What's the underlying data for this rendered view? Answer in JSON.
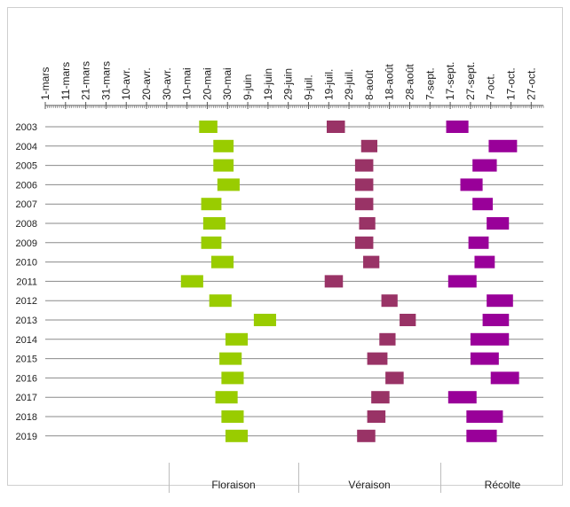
{
  "chart_data": {
    "type": "gantt",
    "x_tick_labels": [
      "1-mars",
      "11-mars",
      "21-mars",
      "31-mars",
      "10-avr.",
      "20-avr.",
      "30-avr.",
      "10-mai",
      "20-mai",
      "30-mai",
      "9-juin",
      "19-juin",
      "29-juin",
      "9-juil.",
      "19-juil.",
      "29-juil.",
      "8-août",
      "18-août",
      "28-août",
      "7-sept.",
      "17-sept.",
      "27-sept.",
      "7-oct.",
      "17-oct.",
      "27-oct."
    ],
    "x_range": [
      "1-mars",
      "2-nov."
    ],
    "years": [
      "2003",
      "2004",
      "2005",
      "2006",
      "2007",
      "2008",
      "2009",
      "2010",
      "2011",
      "2012",
      "2013",
      "2014",
      "2015",
      "2016",
      "2017",
      "2018",
      "2019"
    ],
    "phases": [
      {
        "name": "Floraison",
        "color": "#99cc00",
        "spans": [
          [
            "16-mai",
            "25-mai"
          ],
          [
            "23-mai",
            "2-juin"
          ],
          [
            "23-mai",
            "2-juin"
          ],
          [
            "25-mai",
            "5-juin"
          ],
          [
            "17-mai",
            "27-mai"
          ],
          [
            "18-mai",
            "29-mai"
          ],
          [
            "17-mai",
            "27-mai"
          ],
          [
            "22-mai",
            "2-juin"
          ],
          [
            "7-mai",
            "18-mai"
          ],
          [
            "21-mai",
            "1-juin"
          ],
          [
            "12-juin",
            "23-juin"
          ],
          [
            "29-mai",
            "9-juin"
          ],
          [
            "26-mai",
            "6-juin"
          ],
          [
            "27-mai",
            "7-juin"
          ],
          [
            "24-mai",
            "4-juin"
          ],
          [
            "27-mai",
            "7-juin"
          ],
          [
            "29-mai",
            "9-juin"
          ]
        ]
      },
      {
        "name": "Véraison",
        "color": "#993366",
        "spans": [
          [
            "18-juil.",
            "27-juil."
          ],
          [
            "4-août",
            "12-août"
          ],
          [
            "1-août",
            "10-août"
          ],
          [
            "1-août",
            "10-août"
          ],
          [
            "1-août",
            "10-août"
          ],
          [
            "3-août",
            "11-août"
          ],
          [
            "1-août",
            "10-août"
          ],
          [
            "5-août",
            "13-août"
          ],
          [
            "17-juil.",
            "26-juil."
          ],
          [
            "14-août",
            "22-août"
          ],
          [
            "23-août",
            "31-août"
          ],
          [
            "13-août",
            "21-août"
          ],
          [
            "7-août",
            "17-août"
          ],
          [
            "16-août",
            "25-août"
          ],
          [
            "9-août",
            "18-août"
          ],
          [
            "7-août",
            "16-août"
          ],
          [
            "2-août",
            "11-août"
          ]
        ]
      },
      {
        "name": "Récolte",
        "color": "#990099",
        "spans": [
          [
            "15-sept.",
            "26-sept."
          ],
          [
            "6-oct.",
            "20-oct."
          ],
          [
            "28-sept.",
            "10-oct."
          ],
          [
            "22-sept.",
            "3-oct."
          ],
          [
            "28-sept.",
            "8-oct."
          ],
          [
            "5-oct.",
            "16-oct."
          ],
          [
            "26-sept.",
            "6-oct."
          ],
          [
            "29-sept.",
            "9-oct."
          ],
          [
            "16-sept.",
            "30-sept."
          ],
          [
            "5-oct.",
            "18-oct."
          ],
          [
            "3-oct.",
            "16-oct."
          ],
          [
            "27-sept.",
            "16-oct."
          ],
          [
            "27-sept.",
            "11-oct."
          ],
          [
            "7-oct.",
            "21-oct."
          ],
          [
            "16-sept.",
            "30-sept."
          ],
          [
            "25-sept.",
            "13-oct."
          ],
          [
            "25-sept.",
            "10-oct."
          ]
        ]
      }
    ],
    "legend_placement": "bottom",
    "grid": true
  }
}
